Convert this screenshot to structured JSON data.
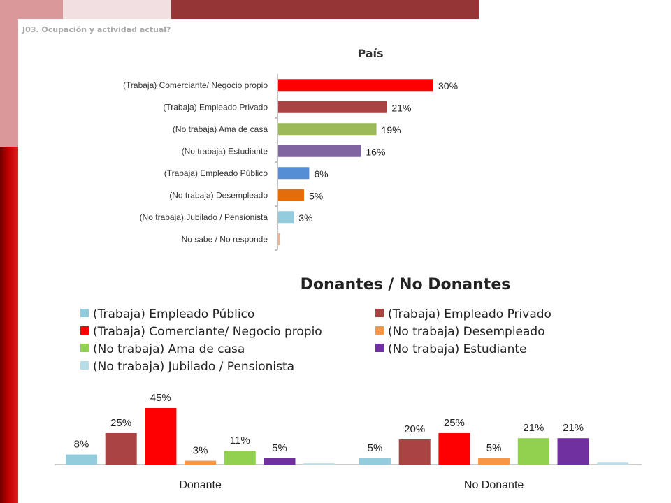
{
  "header": {
    "subtitle": "J03. Ocupación y actividad actual?"
  },
  "colors": {
    "deco_pink": "#d9999b",
    "deco_light": "#f2e0e0",
    "deco_dark": "#943536",
    "deco_red_strip": "#c00000"
  },
  "chart_data": [
    {
      "type": "bar",
      "orientation": "horizontal",
      "title": "País",
      "categories": [
        "(Trabaja) Comerciante/ Negocio propio",
        "(Trabaja) Empleado Privado",
        "(No trabaja) Ama de casa",
        "(No trabaja) Estudiante",
        "(Trabaja) Empleado Público",
        "(No trabaja) Desempleado",
        "(No trabaja) Jubilado / Pensionista",
        "No sabe / No responde"
      ],
      "values": [
        30,
        21,
        19,
        16,
        6,
        5,
        3,
        0.3
      ],
      "value_labels": [
        "30%",
        "21%",
        "19%",
        "16%",
        "6%",
        "5%",
        "3%",
        ""
      ],
      "colors": [
        "#ff0000",
        "#a94442",
        "#9bbb59",
        "#8064a2",
        "#558ed5",
        "#e46c0a",
        "#93cddd",
        "#f4b183"
      ],
      "xlim": [
        0,
        35
      ]
    },
    {
      "type": "bar",
      "title": "Donantes / No Donantes",
      "categories": [
        "Donante",
        "No Donante"
      ],
      "legend_position": "top",
      "series": [
        {
          "name": "(Trabaja) Empleado Público",
          "color": "#93cddd",
          "values": [
            8,
            5
          ],
          "labels": [
            "8%",
            "5%"
          ]
        },
        {
          "name": "(Trabaja) Empleado Privado",
          "color": "#a94442",
          "values": [
            25,
            20
          ],
          "labels": [
            "25%",
            "20%"
          ]
        },
        {
          "name": "(Trabaja) Comerciante/ Negocio propio",
          "color": "#ff0000",
          "values": [
            45,
            25
          ],
          "labels": [
            "45%",
            "25%"
          ]
        },
        {
          "name": "(No trabaja) Desempleado",
          "color": "#f79646",
          "values": [
            3,
            5
          ],
          "labels": [
            "3%",
            "5%"
          ]
        },
        {
          "name": "(No trabaja) Ama de casa",
          "color": "#92d050",
          "values": [
            11,
            21
          ],
          "labels": [
            "11%",
            "21%"
          ]
        },
        {
          "name": "(No trabaja) Estudiante",
          "color": "#7030a0",
          "values": [
            5,
            21
          ],
          "labels": [
            "5%",
            "21%"
          ]
        },
        {
          "name": "(No trabaja) Jubilado / Pensionista",
          "color": "#b7dee8",
          "values": [
            1,
            1.5
          ],
          "labels": [
            "",
            ""
          ]
        }
      ],
      "ylim": [
        0,
        45
      ]
    }
  ]
}
